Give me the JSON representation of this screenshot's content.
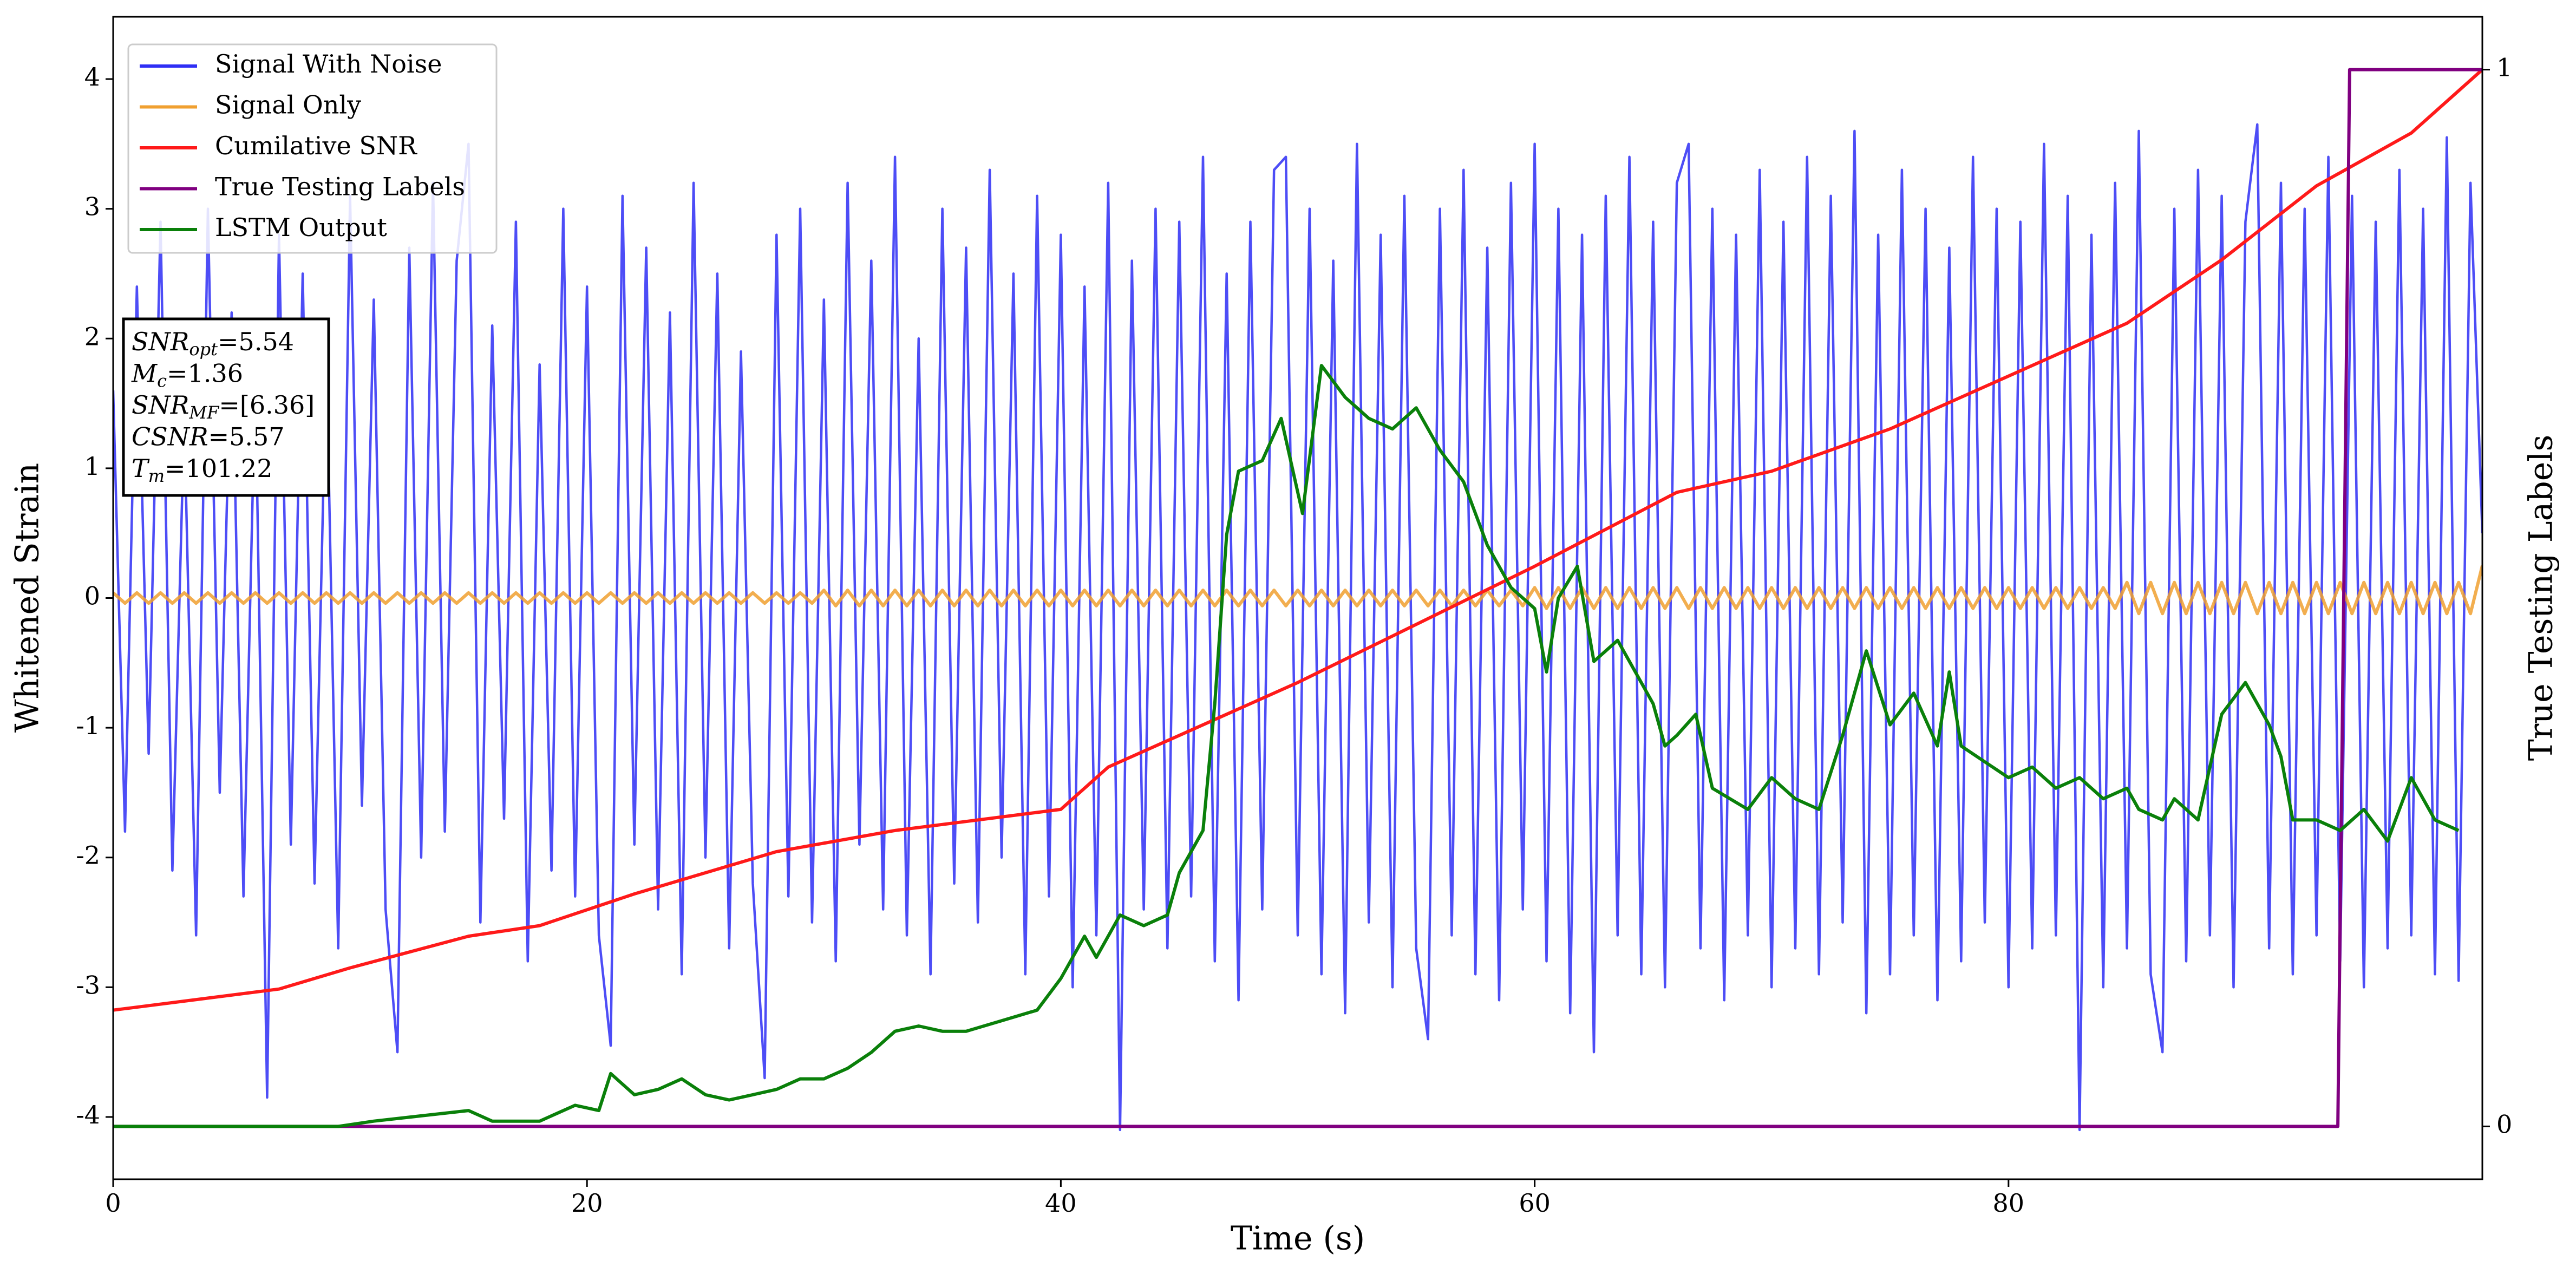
{
  "chart_data": {
    "type": "line",
    "xlabel": "Time (s)",
    "ylabel": "Whitened Strain",
    "y2label": "True Testing Labels",
    "xlim": [
      0,
      100
    ],
    "ylim": [
      -4.48,
      4.48
    ],
    "y2lim": [
      -0.05,
      1.05
    ],
    "xticks": [
      0,
      20,
      40,
      60,
      80
    ],
    "yticks": [
      -4,
      -3,
      -2,
      -1,
      0,
      1,
      2,
      3,
      4
    ],
    "y2ticks": [
      0,
      1
    ],
    "legend": "upper left",
    "x": [
      0,
      0.5,
      1,
      1.5,
      2,
      2.5,
      3,
      3.5,
      4,
      4.5,
      5,
      5.5,
      6,
      6.5,
      7,
      7.5,
      8,
      8.5,
      9,
      9.5,
      10,
      10.5,
      11,
      11.5,
      12,
      12.5,
      13,
      13.5,
      14,
      14.5,
      15,
      15.5,
      16,
      16.5,
      17,
      17.5,
      18,
      18.5,
      19,
      19.5,
      20,
      20.5,
      21,
      21.5,
      22,
      22.5,
      23,
      23.5,
      24,
      24.5,
      25,
      25.5,
      26,
      26.5,
      27,
      27.5,
      28,
      28.5,
      29,
      29.5,
      30,
      30.5,
      31,
      31.5,
      32,
      32.5,
      33,
      33.5,
      34,
      34.5,
      35,
      35.5,
      36,
      36.5,
      37,
      37.5,
      38,
      38.5,
      39,
      39.5,
      40,
      40.5,
      41,
      41.5,
      42,
      42.5,
      43,
      43.5,
      44,
      44.5,
      45,
      45.5,
      46,
      46.5,
      47,
      47.5,
      48,
      48.5,
      49,
      49.5,
      50,
      50.5,
      51,
      51.5,
      52,
      52.5,
      53,
      53.5,
      54,
      54.5,
      55,
      55.5,
      56,
      56.5,
      57,
      57.5,
      58,
      58.5,
      59,
      59.5,
      60,
      60.5,
      61,
      61.5,
      62,
      62.5,
      63,
      63.5,
      64,
      64.5,
      65,
      65.5,
      66,
      66.5,
      67,
      67.5,
      68,
      68.5,
      69,
      69.5,
      70,
      70.5,
      71,
      71.5,
      72,
      72.5,
      73,
      73.5,
      74,
      74.5,
      75,
      75.5,
      76,
      76.5,
      77,
      77.5,
      78,
      78.5,
      79,
      79.5,
      80,
      80.5,
      81,
      81.5,
      82,
      82.5,
      83,
      83.5,
      84,
      84.5,
      85,
      85.5,
      86,
      86.5,
      87,
      87.5,
      88,
      88.5,
      89,
      89.5,
      90,
      90.5,
      91,
      91.5,
      92,
      92.5,
      93,
      93.5,
      94,
      94.5,
      95,
      95.5,
      96,
      96.5,
      97,
      97.5,
      98,
      98.5,
      99,
      99.5,
      100
    ],
    "series": [
      {
        "name": "Signal With Noise",
        "color": "#2e2ef5",
        "axis": "y",
        "values": [
          1.6,
          -1.8,
          2.4,
          -1.2,
          2.9,
          -2.1,
          1.4,
          -2.6,
          3.0,
          -1.5,
          2.2,
          -2.3,
          1.7,
          -3.85,
          2.8,
          -1.9,
          2.5,
          -2.2,
          1.9,
          -2.7,
          3.1,
          -1.6,
          2.3,
          -2.4,
          -3.5,
          2.7,
          -2.0,
          3.2,
          -1.8,
          2.6,
          3.5,
          -2.5,
          2.1,
          -1.7,
          2.9,
          -2.8,
          1.8,
          -2.1,
          3.0,
          -2.3,
          2.4,
          -2.6,
          -3.45,
          3.1,
          -1.9,
          2.7,
          -2.4,
          2.2,
          -2.9,
          3.2,
          -2.0,
          2.5,
          -2.7,
          1.9,
          -2.2,
          -3.7,
          2.8,
          -2.3,
          3.0,
          -2.5,
          2.3,
          -2.8,
          3.2,
          -1.9,
          2.6,
          -2.4,
          3.4,
          -2.6,
          2.0,
          -2.9,
          3.0,
          -2.2,
          2.7,
          -2.5,
          3.3,
          -2.0,
          2.5,
          -2.9,
          3.1,
          -2.3,
          2.8,
          -3.0,
          2.4,
          -2.6,
          3.2,
          -4.1,
          2.6,
          -2.4,
          3.0,
          -2.7,
          2.9,
          -2.3,
          3.4,
          -2.8,
          2.5,
          -3.1,
          2.9,
          -2.4,
          3.3,
          3.4,
          -2.6,
          3.0,
          -2.9,
          2.6,
          -3.2,
          3.5,
          -2.5,
          2.8,
          -3.0,
          3.1,
          -2.7,
          -3.4,
          3.0,
          -2.6,
          3.3,
          -2.9,
          2.7,
          -3.1,
          3.2,
          -2.4,
          3.5,
          -2.8,
          3.0,
          -3.2,
          2.8,
          -3.5,
          3.1,
          -2.6,
          3.4,
          -2.9,
          2.9,
          -3.0,
          3.2,
          3.5,
          -2.7,
          3.0,
          -3.1,
          2.8,
          -2.6,
          3.3,
          -3.0,
          2.9,
          -2.7,
          3.4,
          -2.9,
          3.1,
          -2.5,
          3.6,
          -3.2,
          2.8,
          -2.9,
          3.3,
          -2.6,
          3.0,
          -3.1,
          2.7,
          -2.8,
          3.4,
          -2.5,
          3.0,
          -3.0,
          2.9,
          -2.7,
          3.5,
          -2.6,
          3.1,
          -4.1,
          2.8,
          -3.0,
          3.2,
          -2.7,
          3.6,
          -2.9,
          -3.5,
          3.0,
          -2.8,
          3.3,
          -2.6,
          3.1,
          -3.0,
          2.9,
          3.65,
          -2.7,
          3.2,
          -2.9,
          3.0,
          -2.6,
          3.4,
          -2.8,
          3.1,
          -3.0,
          2.9,
          -2.7,
          3.3,
          -2.6,
          3.0,
          -2.9,
          3.55,
          -2.95,
          3.2,
          0.5
        ]
      },
      {
        "name": "Signal Only",
        "color": "#f0a030",
        "axis": "y",
        "values": [
          0.04,
          -0.04,
          0.04,
          -0.04,
          0.04,
          -0.04,
          0.04,
          -0.04,
          0.04,
          -0.04,
          0.04,
          -0.04,
          0.04,
          -0.04,
          0.04,
          -0.04,
          0.04,
          -0.04,
          0.04,
          -0.04,
          0.04,
          -0.04,
          0.04,
          -0.04,
          0.04,
          -0.04,
          0.04,
          -0.04,
          0.04,
          -0.04,
          0.04,
          -0.04,
          0.04,
          -0.04,
          0.04,
          -0.04,
          0.04,
          -0.04,
          0.04,
          -0.04,
          0.04,
          -0.04,
          0.04,
          -0.04,
          0.04,
          -0.04,
          0.04,
          -0.04,
          0.04,
          -0.04,
          0.04,
          -0.04,
          0.04,
          -0.04,
          0.04,
          -0.04,
          0.04,
          -0.04,
          0.04,
          -0.04,
          0.06,
          -0.06,
          0.06,
          -0.06,
          0.06,
          -0.06,
          0.06,
          -0.06,
          0.06,
          -0.06,
          0.06,
          -0.06,
          0.06,
          -0.06,
          0.06,
          -0.06,
          0.06,
          -0.06,
          0.06,
          -0.06,
          0.06,
          -0.06,
          0.06,
          -0.06,
          0.06,
          -0.06,
          0.06,
          -0.06,
          0.06,
          -0.06,
          0.06,
          -0.06,
          0.06,
          -0.06,
          0.06,
          -0.06,
          0.06,
          -0.06,
          0.06,
          -0.06,
          0.06,
          -0.06,
          0.06,
          -0.06,
          0.06,
          -0.06,
          0.06,
          -0.06,
          0.06,
          -0.06,
          0.06,
          -0.06,
          0.06,
          -0.06,
          0.06,
          -0.06,
          0.06,
          -0.06,
          0.06,
          -0.06,
          0.08,
          -0.08,
          0.08,
          -0.08,
          0.08,
          -0.08,
          0.08,
          -0.08,
          0.08,
          -0.08,
          0.08,
          -0.08,
          0.08,
          -0.08,
          0.08,
          -0.08,
          0.08,
          -0.08,
          0.08,
          -0.08,
          0.08,
          -0.08,
          0.08,
          -0.08,
          0.08,
          -0.08,
          0.08,
          -0.08,
          0.08,
          -0.08,
          0.08,
          -0.08,
          0.08,
          -0.08,
          0.08,
          -0.08,
          0.08,
          -0.08,
          0.08,
          -0.08,
          0.08,
          -0.08,
          0.08,
          -0.08,
          0.08,
          -0.08,
          0.08,
          -0.08,
          0.08,
          -0.08,
          0.12,
          -0.12,
          0.12,
          -0.12,
          0.12,
          -0.12,
          0.12,
          -0.12,
          0.12,
          -0.12,
          0.12,
          -0.12,
          0.12,
          -0.12,
          0.12,
          -0.12,
          0.12,
          -0.12,
          0.12,
          -0.12,
          0.12,
          -0.12,
          0.12,
          -0.12,
          0.12,
          -0.12,
          0.12,
          -0.12,
          0.12,
          -0.12,
          0.25
        ]
      },
      {
        "name": "Cumilative SNR",
        "color": "#ff1a1a",
        "axis": "y2",
        "x": [
          0,
          7,
          10,
          15,
          18,
          22,
          28,
          33,
          40,
          42,
          50,
          60,
          66,
          70,
          75,
          80,
          85,
          89,
          93,
          97,
          100
        ],
        "values": [
          0.11,
          0.13,
          0.15,
          0.18,
          0.19,
          0.22,
          0.26,
          0.28,
          0.3,
          0.34,
          0.42,
          0.53,
          0.6,
          0.62,
          0.66,
          0.71,
          0.76,
          0.82,
          0.89,
          0.94,
          1.0
        ]
      },
      {
        "name": "True Testing Labels",
        "color": "#800080",
        "axis": "y2",
        "x": [
          0,
          93.9,
          94.4,
          100
        ],
        "values": [
          0,
          0,
          1,
          1
        ]
      },
      {
        "name": "LSTM Output",
        "color": "#0a800a",
        "axis": "y2",
        "x": [
          0,
          9.5,
          11,
          13,
          15,
          16,
          18,
          19.5,
          20.5,
          21,
          22,
          23,
          24,
          25,
          26,
          27,
          28,
          29,
          30,
          31,
          32,
          33,
          34,
          35,
          36,
          37.5,
          39,
          40,
          41,
          41.5,
          42.5,
          43.5,
          44.5,
          45,
          46,
          46.5,
          47,
          47.5,
          48.5,
          49.3,
          50.2,
          51,
          52,
          53,
          54,
          55,
          56,
          57,
          58,
          59,
          60,
          60.5,
          61,
          61.8,
          62.5,
          63.5,
          65,
          65.5,
          66,
          66.8,
          67.5,
          69,
          70,
          71,
          72,
          73,
          74,
          75,
          76,
          77,
          77.5,
          78,
          80,
          81,
          82,
          83,
          84,
          85,
          85.5,
          86.5,
          87,
          88,
          89,
          90,
          91,
          91.5,
          92,
          93,
          94,
          95,
          96,
          97,
          98,
          99
        ],
        "values": [
          0,
          0,
          0.005,
          0.01,
          0.015,
          0.005,
          0.005,
          0.02,
          0.015,
          0.05,
          0.03,
          0.035,
          0.045,
          0.03,
          0.025,
          0.03,
          0.035,
          0.045,
          0.045,
          0.055,
          0.07,
          0.09,
          0.095,
          0.09,
          0.09,
          0.1,
          0.11,
          0.14,
          0.18,
          0.16,
          0.2,
          0.19,
          0.2,
          0.24,
          0.28,
          0.4,
          0.56,
          0.62,
          0.63,
          0.67,
          0.58,
          0.72,
          0.69,
          0.67,
          0.66,
          0.68,
          0.64,
          0.61,
          0.55,
          0.51,
          0.49,
          0.43,
          0.5,
          0.53,
          0.44,
          0.46,
          0.4,
          0.36,
          0.37,
          0.39,
          0.32,
          0.3,
          0.33,
          0.31,
          0.3,
          0.37,
          0.45,
          0.38,
          0.41,
          0.36,
          0.43,
          0.36,
          0.33,
          0.34,
          0.32,
          0.33,
          0.31,
          0.32,
          0.3,
          0.29,
          0.31,
          0.29,
          0.39,
          0.42,
          0.38,
          0.35,
          0.29,
          0.29,
          0.28,
          0.3,
          0.27,
          0.33,
          0.29,
          0.28
        ]
      }
    ],
    "annotations": [
      {
        "var": "SNR",
        "sub": "opt",
        "text": "=5.54"
      },
      {
        "var": "M",
        "sub": "c",
        "text": "=1.36"
      },
      {
        "var": "SNR",
        "sub": "MF",
        "text": "=[6.36]"
      },
      {
        "var": "CSNR",
        "text": "=5.57"
      },
      {
        "var": "T",
        "sub": "m",
        "text": "=101.22"
      }
    ]
  }
}
